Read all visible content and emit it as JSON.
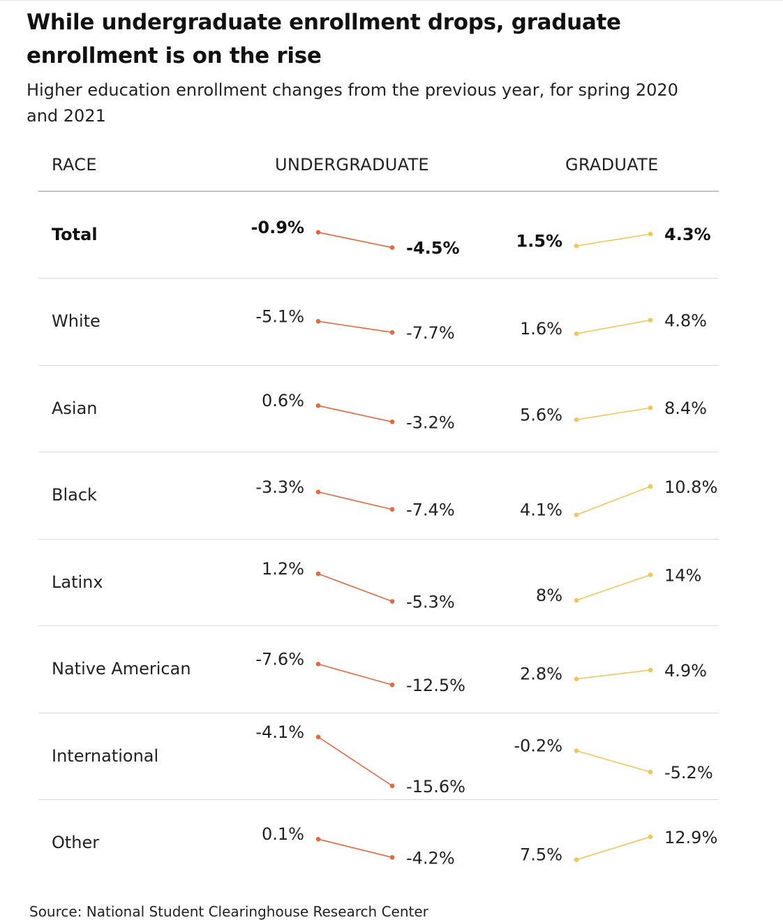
{
  "title": "While undergraduate enrollment drops, graduate enrollment is on the rise",
  "subtitle": "Higher education enrollment changes from the previous year, for spring 2020 and 2021",
  "headers": {
    "race": "RACE",
    "undergraduate": "UNDERGRADUATE",
    "graduate": "GRADUATE"
  },
  "source": "Source: National Student Clearinghouse Research Center",
  "colors": {
    "undergraduate": "#e4693d",
    "graduate": "#f0c656",
    "rule": "#d9d9d9"
  },
  "chart_data": {
    "type": "slope",
    "periods": [
      "Spring 2020",
      "Spring 2021"
    ],
    "unit": "%",
    "rows": [
      {
        "race": "Total",
        "bold": true,
        "undergraduate": {
          "values": [
            -0.9,
            -4.5
          ],
          "labels": [
            "-0.9%",
            "-4.5%"
          ]
        },
        "graduate": {
          "values": [
            1.5,
            4.3
          ],
          "labels": [
            "1.5%",
            "4.3%"
          ]
        }
      },
      {
        "race": "White",
        "bold": false,
        "undergraduate": {
          "values": [
            -5.1,
            -7.7
          ],
          "labels": [
            "-5.1%",
            "-7.7%"
          ]
        },
        "graduate": {
          "values": [
            1.6,
            4.8
          ],
          "labels": [
            "1.6%",
            "4.8%"
          ]
        }
      },
      {
        "race": "Asian",
        "bold": false,
        "undergraduate": {
          "values": [
            0.6,
            -3.2
          ],
          "labels": [
            "0.6%",
            "-3.2%"
          ]
        },
        "graduate": {
          "values": [
            5.6,
            8.4
          ],
          "labels": [
            "5.6%",
            "8.4%"
          ]
        }
      },
      {
        "race": "Black",
        "bold": false,
        "undergraduate": {
          "values": [
            -3.3,
            -7.4
          ],
          "labels": [
            "-3.3%",
            "-7.4%"
          ]
        },
        "graduate": {
          "values": [
            4.1,
            10.8
          ],
          "labels": [
            "4.1%",
            "10.8%"
          ]
        }
      },
      {
        "race": "Latinx",
        "bold": false,
        "undergraduate": {
          "values": [
            1.2,
            -5.3
          ],
          "labels": [
            "1.2%",
            "-5.3%"
          ]
        },
        "graduate": {
          "values": [
            8,
            14
          ],
          "labels": [
            "8%",
            "14%"
          ]
        }
      },
      {
        "race": "Native American",
        "bold": false,
        "undergraduate": {
          "values": [
            -7.6,
            -12.5
          ],
          "labels": [
            "-7.6%",
            "-12.5%"
          ]
        },
        "graduate": {
          "values": [
            2.8,
            4.9
          ],
          "labels": [
            "2.8%",
            "4.9%"
          ]
        }
      },
      {
        "race": "International",
        "bold": false,
        "undergraduate": {
          "values": [
            -4.1,
            -15.6
          ],
          "labels": [
            "-4.1%",
            "-15.6%"
          ]
        },
        "graduate": {
          "values": [
            -0.2,
            -5.2
          ],
          "labels": [
            "-0.2%",
            "-5.2%"
          ]
        }
      },
      {
        "race": "Other",
        "bold": false,
        "undergraduate": {
          "values": [
            0.1,
            -4.2
          ],
          "labels": [
            "0.1%",
            "-4.2%"
          ]
        },
        "graduate": {
          "values": [
            7.5,
            12.9
          ],
          "labels": [
            "7.5%",
            "12.9%"
          ]
        }
      }
    ]
  }
}
